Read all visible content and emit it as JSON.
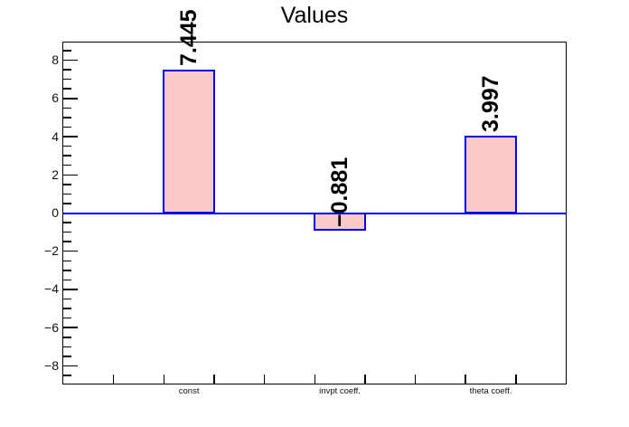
{
  "chart_data": {
    "type": "bar",
    "title": "Values",
    "categories": [
      "const",
      "invpt coeff.",
      "theta coeff."
    ],
    "values": [
      7.445,
      -0.881,
      3.997
    ],
    "value_labels": [
      "7.445",
      "−0.881",
      "3.997"
    ],
    "xlabel": "",
    "ylabel": "",
    "ylim": [
      -8.95,
      8.95
    ],
    "ytick_values": [
      8,
      6,
      4,
      2,
      0,
      -2,
      -4,
      -6,
      -8
    ],
    "ytick_labels": [
      "8",
      "6",
      "4",
      "2",
      "0",
      "−2",
      "−4",
      "−6",
      "−8"
    ],
    "ytick_minor_step": 0.5,
    "x_subdivisions": 10,
    "bar_slots": [
      2,
      5,
      8
    ],
    "grid": false,
    "colors": {
      "bar_fill": "#fcc9c9",
      "bar_border": "#0000f2",
      "zero_line": "#0000f2",
      "axis": "#000000",
      "text": "#000000",
      "background": "#ffffff"
    }
  }
}
